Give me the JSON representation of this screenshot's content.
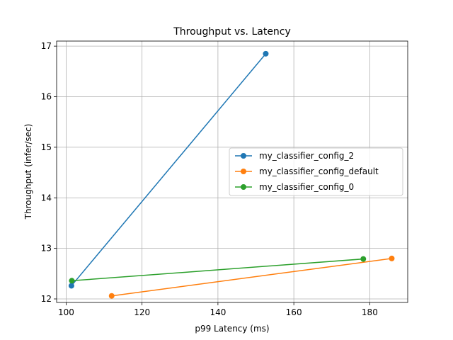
{
  "chart_data": {
    "type": "line",
    "title": "Throughput vs. Latency",
    "xlabel": "p99 Latency (ms)",
    "ylabel": "Throughput (infer/sec)",
    "xlim": [
      97.5,
      190
    ],
    "ylim": [
      11.93,
      17.1
    ],
    "xticks": [
      100,
      120,
      140,
      160,
      180
    ],
    "yticks": [
      12,
      13,
      14,
      15,
      16,
      17
    ],
    "grid": true,
    "legend_position": "center-right",
    "series": [
      {
        "name": "my_classifier_config_2",
        "color": "#1f77b4",
        "x": [
          101.4,
          152.6
        ],
        "y": [
          12.26,
          16.85
        ]
      },
      {
        "name": "my_classifier_config_default",
        "color": "#ff7f0e",
        "x": [
          112.0,
          185.8
        ],
        "y": [
          12.06,
          12.8
        ]
      },
      {
        "name": "my_classifier_config_0",
        "color": "#2ca02c",
        "x": [
          101.5,
          178.3
        ],
        "y": [
          12.36,
          12.79
        ]
      }
    ]
  }
}
